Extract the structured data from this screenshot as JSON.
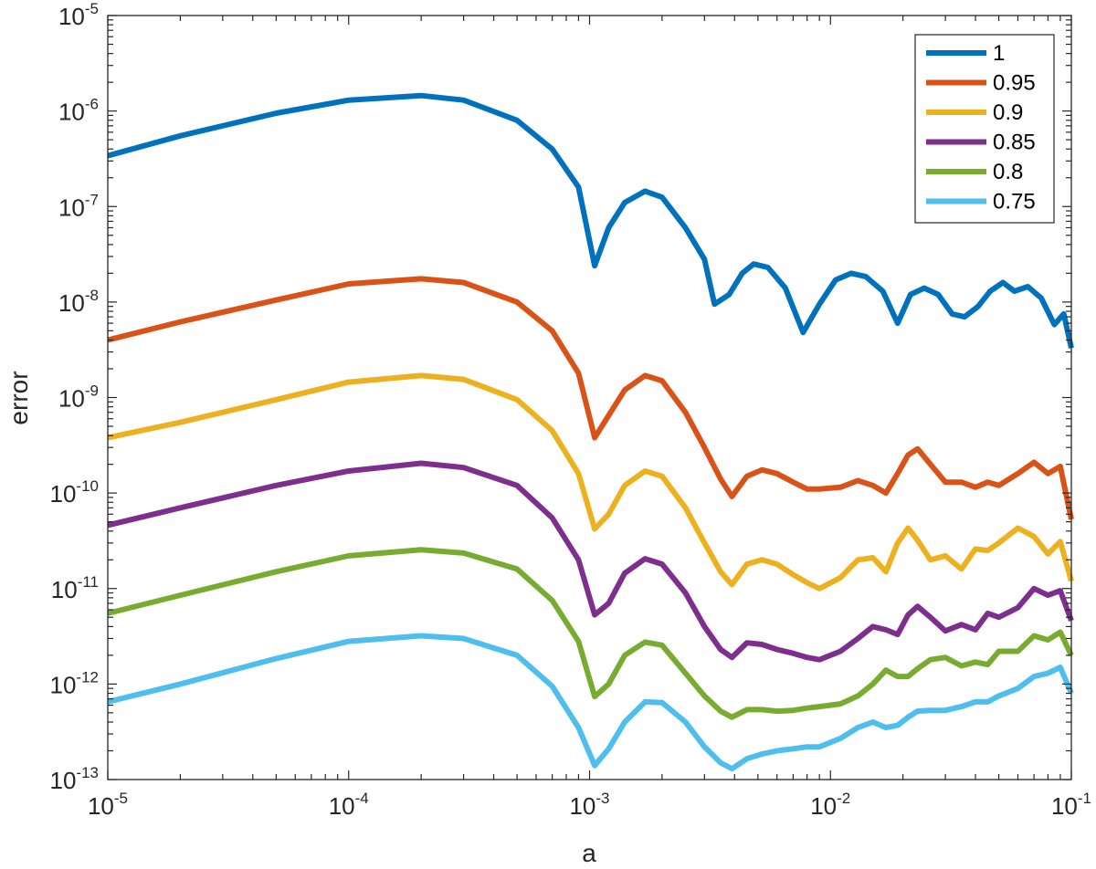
{
  "chart_data": {
    "type": "line",
    "title": "",
    "xlabel": "a",
    "ylabel": "error",
    "xscale": "log",
    "yscale": "log",
    "xlim": [
      1e-05,
      0.1
    ],
    "ylim": [
      1e-13,
      1e-05
    ],
    "grid": false,
    "legend_position": "top-right",
    "x_ticks": [
      {
        "value": 1e-05,
        "base": "10",
        "exp": "-5"
      },
      {
        "value": 0.0001,
        "base": "10",
        "exp": "-4"
      },
      {
        "value": 0.001,
        "base": "10",
        "exp": "-3"
      },
      {
        "value": 0.01,
        "base": "10",
        "exp": "-2"
      },
      {
        "value": 0.1,
        "base": "10",
        "exp": "-1"
      }
    ],
    "y_ticks": [
      {
        "value": 1e-13,
        "base": "10",
        "exp": "-13"
      },
      {
        "value": 1e-12,
        "base": "10",
        "exp": "-12"
      },
      {
        "value": 1e-11,
        "base": "10",
        "exp": "-11"
      },
      {
        "value": 1e-10,
        "base": "10",
        "exp": "-10"
      },
      {
        "value": 1e-09,
        "base": "10",
        "exp": "-9"
      },
      {
        "value": 1e-08,
        "base": "10",
        "exp": "-8"
      },
      {
        "value": 1e-07,
        "base": "10",
        "exp": "-7"
      },
      {
        "value": 1e-06,
        "base": "10",
        "exp": "-6"
      },
      {
        "value": 1e-05,
        "base": "10",
        "exp": "-5"
      }
    ],
    "series": [
      {
        "name": "1",
        "color": "#0072BD",
        "x": [
          1e-05,
          2e-05,
          5e-05,
          0.0001,
          0.0002,
          0.0003,
          0.0005,
          0.0007,
          0.0009,
          0.00105,
          0.0012,
          0.0014,
          0.0017,
          0.002,
          0.0025,
          0.003,
          0.0033,
          0.0038,
          0.0043,
          0.0048,
          0.0055,
          0.0065,
          0.0077,
          0.009,
          0.0105,
          0.0122,
          0.014,
          0.0165,
          0.019,
          0.0215,
          0.0245,
          0.028,
          0.032,
          0.036,
          0.041,
          0.046,
          0.052,
          0.058,
          0.066,
          0.075,
          0.085,
          0.093,
          0.1
        ],
        "y": [
          3.4e-07,
          5.5e-07,
          9.5e-07,
          1.3e-06,
          1.45e-06,
          1.3e-06,
          8e-07,
          4e-07,
          1.6e-07,
          2.4e-08,
          6e-08,
          1.1e-07,
          1.45e-07,
          1.25e-07,
          6e-08,
          2.8e-08,
          9.5e-09,
          1.2e-08,
          2e-08,
          2.5e-08,
          2.3e-08,
          1.4e-08,
          4.8e-09,
          9.5e-09,
          1.7e-08,
          2e-08,
          1.85e-08,
          1.3e-08,
          6e-09,
          1.2e-08,
          1.4e-08,
          1.2e-08,
          7.5e-09,
          7e-09,
          9e-09,
          1.3e-08,
          1.6e-08,
          1.3e-08,
          1.45e-08,
          1.1e-08,
          5.8e-09,
          7.5e-09,
          3.3e-09
        ]
      },
      {
        "name": "0.95",
        "color": "#D95319",
        "x": [
          1e-05,
          2e-05,
          5e-05,
          0.0001,
          0.0002,
          0.0003,
          0.0005,
          0.0007,
          0.0009,
          0.00105,
          0.0012,
          0.0014,
          0.0017,
          0.002,
          0.0025,
          0.003,
          0.0035,
          0.0039,
          0.0045,
          0.0052,
          0.006,
          0.007,
          0.008,
          0.009,
          0.011,
          0.013,
          0.015,
          0.017,
          0.019,
          0.021,
          0.023,
          0.026,
          0.03,
          0.035,
          0.04,
          0.045,
          0.05,
          0.06,
          0.07,
          0.08,
          0.09,
          0.1
        ],
        "y": [
          4e-09,
          6.2e-09,
          1.05e-08,
          1.55e-08,
          1.75e-08,
          1.6e-08,
          1e-08,
          5e-09,
          1.8e-09,
          3.8e-10,
          6.5e-10,
          1.2e-09,
          1.7e-09,
          1.5e-09,
          7e-10,
          3e-10,
          1.4e-10,
          9.2e-11,
          1.5e-10,
          1.75e-10,
          1.6e-10,
          1.3e-10,
          1.1e-10,
          1.1e-10,
          1.15e-10,
          1.35e-10,
          1.2e-10,
          1e-10,
          1.6e-10,
          2.5e-10,
          2.9e-10,
          2e-10,
          1.3e-10,
          1.3e-10,
          1.15e-10,
          1.3e-10,
          1.2e-10,
          1.6e-10,
          2.1e-10,
          1.6e-10,
          1.9e-10,
          5.3e-11
        ]
      },
      {
        "name": "0.9",
        "color": "#EDB120",
        "x": [
          1e-05,
          2e-05,
          5e-05,
          0.0001,
          0.0002,
          0.0003,
          0.0005,
          0.0007,
          0.0009,
          0.00105,
          0.0012,
          0.0014,
          0.0017,
          0.002,
          0.0025,
          0.003,
          0.0035,
          0.0039,
          0.0045,
          0.0052,
          0.006,
          0.007,
          0.008,
          0.009,
          0.011,
          0.013,
          0.015,
          0.017,
          0.019,
          0.021,
          0.023,
          0.026,
          0.03,
          0.035,
          0.04,
          0.045,
          0.05,
          0.06,
          0.07,
          0.08,
          0.09,
          0.1
        ],
        "y": [
          3.8e-10,
          5.5e-10,
          9.5e-10,
          1.45e-09,
          1.7e-09,
          1.55e-09,
          9.5e-10,
          4.5e-10,
          1.6e-10,
          4.2e-11,
          6e-11,
          1.2e-10,
          1.7e-10,
          1.5e-10,
          7e-11,
          3e-11,
          1.5e-11,
          1.1e-11,
          1.8e-11,
          2e-11,
          1.8e-11,
          1.4e-11,
          1.15e-11,
          1e-11,
          1.3e-11,
          2e-11,
          2.1e-11,
          1.5e-11,
          3e-11,
          4.3e-11,
          3.2e-11,
          2e-11,
          2.2e-11,
          1.6e-11,
          2.6e-11,
          2.5e-11,
          3e-11,
          4.3e-11,
          3.5e-11,
          2.3e-11,
          3.1e-11,
          1.2e-11
        ]
      },
      {
        "name": "0.85",
        "color": "#7E2F8E",
        "x": [
          1e-05,
          2e-05,
          5e-05,
          0.0001,
          0.0002,
          0.0003,
          0.0005,
          0.0007,
          0.0009,
          0.00105,
          0.0012,
          0.0014,
          0.0017,
          0.002,
          0.0025,
          0.003,
          0.0035,
          0.0039,
          0.0045,
          0.0052,
          0.006,
          0.007,
          0.008,
          0.009,
          0.011,
          0.013,
          0.015,
          0.017,
          0.019,
          0.021,
          0.023,
          0.026,
          0.03,
          0.035,
          0.04,
          0.045,
          0.05,
          0.06,
          0.07,
          0.08,
          0.09,
          0.1
        ],
        "y": [
          4.6e-11,
          7e-11,
          1.2e-10,
          1.7e-10,
          2.05e-10,
          1.85e-10,
          1.2e-10,
          5.5e-11,
          2e-11,
          5.3e-12,
          7e-12,
          1.45e-11,
          2.05e-11,
          1.8e-11,
          9e-12,
          4e-12,
          2.3e-12,
          1.9e-12,
          2.7e-12,
          2.6e-12,
          2.3e-12,
          2.1e-12,
          1.9e-12,
          1.8e-12,
          2.2e-12,
          3e-12,
          4e-12,
          3.7e-12,
          3.3e-12,
          5.3e-12,
          6.5e-12,
          5e-12,
          3.6e-12,
          4.2e-12,
          3.7e-12,
          5.5e-12,
          5e-12,
          6.3e-12,
          1e-11,
          8.5e-12,
          9.5e-12,
          4.6e-12
        ]
      },
      {
        "name": "0.8",
        "color": "#77AC30",
        "x": [
          1e-05,
          2e-05,
          5e-05,
          0.0001,
          0.0002,
          0.0003,
          0.0005,
          0.0007,
          0.0009,
          0.00105,
          0.0012,
          0.0014,
          0.0017,
          0.002,
          0.0025,
          0.003,
          0.0035,
          0.0039,
          0.0045,
          0.0052,
          0.006,
          0.007,
          0.008,
          0.009,
          0.011,
          0.013,
          0.015,
          0.017,
          0.019,
          0.021,
          0.023,
          0.026,
          0.03,
          0.035,
          0.04,
          0.045,
          0.05,
          0.06,
          0.07,
          0.08,
          0.09,
          0.1
        ],
        "y": [
          5.5e-12,
          8.5e-12,
          1.5e-11,
          2.2e-11,
          2.55e-11,
          2.35e-11,
          1.6e-11,
          7.5e-12,
          2.8e-12,
          7.4e-13,
          1e-12,
          2e-12,
          2.75e-12,
          2.55e-12,
          1.3e-12,
          7.5e-13,
          5.2e-13,
          4.5e-13,
          5.4e-13,
          5.4e-13,
          5.2e-13,
          5.3e-13,
          5.6e-13,
          5.8e-13,
          6.2e-13,
          7.5e-13,
          1e-12,
          1.4e-12,
          1.2e-12,
          1.2e-12,
          1.45e-12,
          1.8e-12,
          1.9e-12,
          1.55e-12,
          1.7e-12,
          1.6e-12,
          2.2e-12,
          2.2e-12,
          3.2e-12,
          2.9e-12,
          3.5e-12,
          2e-12
        ]
      },
      {
        "name": "0.75",
        "color": "#4DBEEE",
        "x": [
          1e-05,
          2e-05,
          5e-05,
          0.0001,
          0.0002,
          0.0003,
          0.0005,
          0.0007,
          0.0009,
          0.00105,
          0.0012,
          0.0014,
          0.0017,
          0.002,
          0.0025,
          0.003,
          0.0035,
          0.0039,
          0.0045,
          0.0052,
          0.006,
          0.007,
          0.008,
          0.009,
          0.011,
          0.013,
          0.015,
          0.017,
          0.019,
          0.021,
          0.023,
          0.026,
          0.03,
          0.035,
          0.04,
          0.045,
          0.05,
          0.06,
          0.07,
          0.08,
          0.09,
          0.1
        ],
        "y": [
          6.5e-13,
          1e-12,
          1.85e-12,
          2.8e-12,
          3.2e-12,
          3e-12,
          2e-12,
          9.5e-13,
          3.5e-13,
          1.4e-13,
          2.1e-13,
          4e-13,
          6.5e-13,
          6.4e-13,
          4e-13,
          2.2e-13,
          1.5e-13,
          1.3e-13,
          1.65e-13,
          1.85e-13,
          2e-13,
          2.1e-13,
          2.2e-13,
          2.2e-13,
          2.7e-13,
          3.5e-13,
          4e-13,
          3.5e-13,
          3.7e-13,
          4.5e-13,
          5.2e-13,
          5.3e-13,
          5.3e-13,
          5.8e-13,
          6.5e-13,
          6.5e-13,
          7.5e-13,
          9e-13,
          1.2e-12,
          1.3e-12,
          1.5e-12,
          8e-13
        ]
      }
    ]
  }
}
